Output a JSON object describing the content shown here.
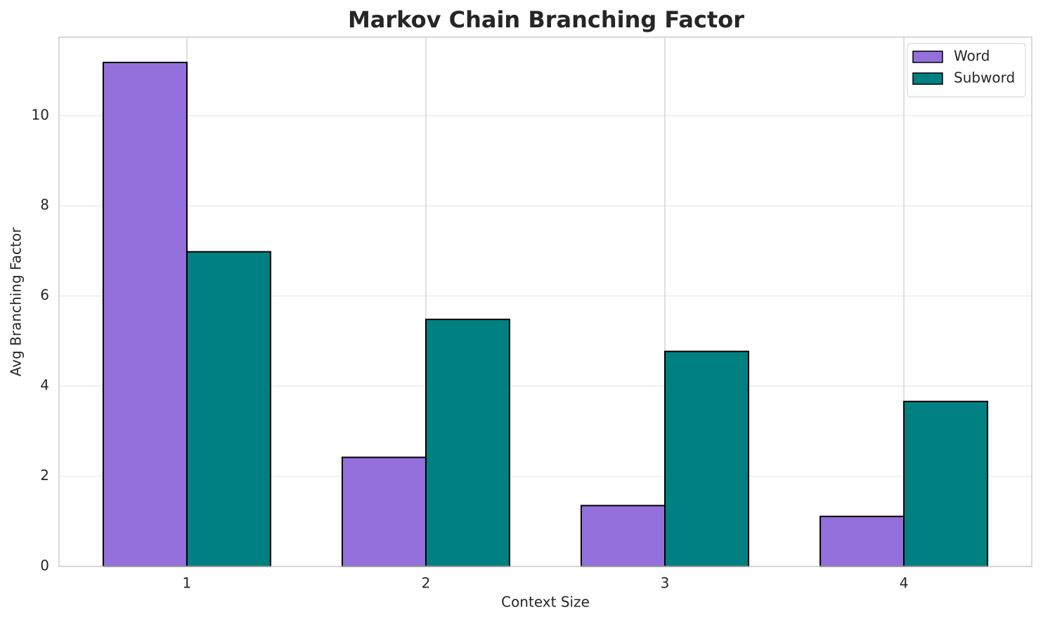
{
  "chart_data": {
    "type": "bar",
    "title": "Markov Chain Branching Factor",
    "x_label": "Context Size",
    "y_label": "Avg Branching Factor",
    "categories": [
      "1",
      "2",
      "3",
      "4"
    ],
    "series": [
      {
        "name": "Word",
        "color": "#9370db",
        "values": [
          11.18,
          2.42,
          1.35,
          1.11
        ]
      },
      {
        "name": "Subword",
        "color": "#008080",
        "values": [
          6.98,
          5.48,
          4.77,
          3.66
        ]
      }
    ],
    "ylim": [
      0,
      11.74
    ],
    "yticks": [
      0,
      2,
      4,
      6,
      8,
      10
    ],
    "grid": true,
    "legend": "upper right"
  }
}
